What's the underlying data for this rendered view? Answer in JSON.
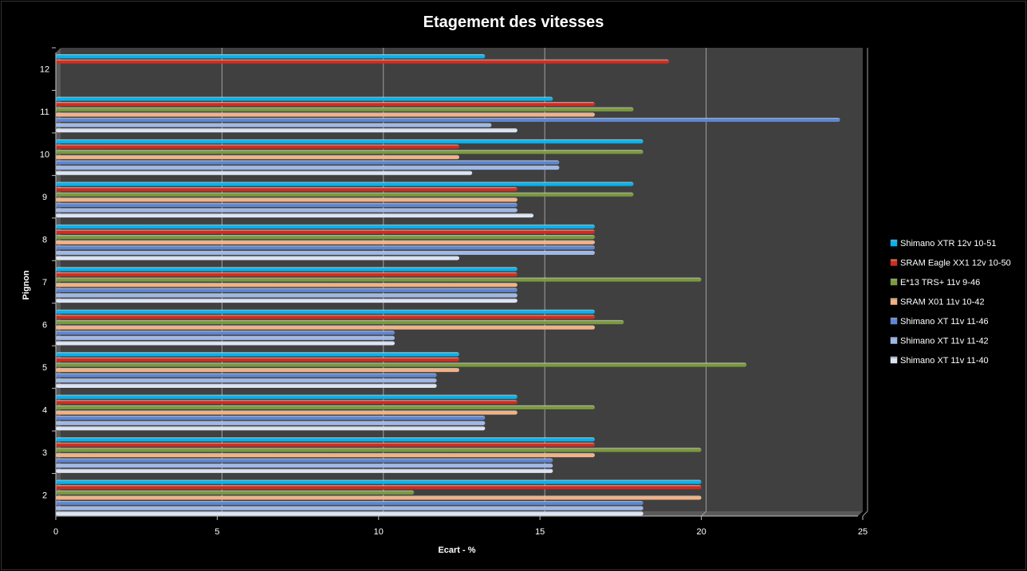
{
  "chart_data": {
    "type": "bar",
    "orientation": "horizontal",
    "title": "Etagement des vitesses",
    "xlabel": "Ecart - %",
    "ylabel": "Pignon",
    "xlim": [
      0,
      25
    ],
    "xticks": [
      "0",
      "5",
      "10",
      "15",
      "20",
      "25"
    ],
    "categories": [
      "2",
      "3",
      "4",
      "5",
      "6",
      "7",
      "8",
      "9",
      "10",
      "11",
      "12"
    ],
    "grid": true,
    "legend_position": "right",
    "series": [
      {
        "name": "Shimano XTR 12v 10-51",
        "color": "#00b4f0",
        "values": [
          20.0,
          16.7,
          14.3,
          12.5,
          16.7,
          14.3,
          16.7,
          17.9,
          18.2,
          15.4,
          13.3
        ]
      },
      {
        "name": "SRAM Eagle XX1 12v 10-50",
        "color": "#d42b1e",
        "values": [
          20.0,
          16.7,
          14.3,
          12.5,
          16.7,
          14.3,
          16.7,
          14.3,
          12.5,
          16.7,
          19.0
        ]
      },
      {
        "name": "E*13 TRS+ 11v 9-46",
        "color": "#7a9a3a",
        "values": [
          11.1,
          20.0,
          16.7,
          21.4,
          17.6,
          20.0,
          16.7,
          17.9,
          18.2,
          17.9,
          null
        ]
      },
      {
        "name": "SRAM X01 11v 10-42",
        "color": "#f4b183",
        "values": [
          20.0,
          16.7,
          14.3,
          12.5,
          16.7,
          14.3,
          16.7,
          14.3,
          12.5,
          16.7,
          null
        ]
      },
      {
        "name": "Shimano XT 11v 11-46",
        "color": "#5b86d6",
        "values": [
          18.2,
          15.4,
          13.3,
          11.8,
          10.5,
          14.3,
          16.7,
          14.3,
          15.6,
          24.3,
          null
        ]
      },
      {
        "name": "Shimano XT 11v 11-42",
        "color": "#9db8ea",
        "values": [
          18.2,
          15.4,
          13.3,
          11.8,
          10.5,
          14.3,
          16.7,
          14.3,
          15.6,
          13.5,
          null
        ]
      },
      {
        "name": "Shimano XT 11v 11-40",
        "color": "#dbe5f6",
        "values": [
          18.2,
          15.4,
          13.3,
          11.8,
          10.5,
          14.3,
          12.5,
          14.8,
          12.9,
          14.3,
          null
        ]
      }
    ]
  }
}
